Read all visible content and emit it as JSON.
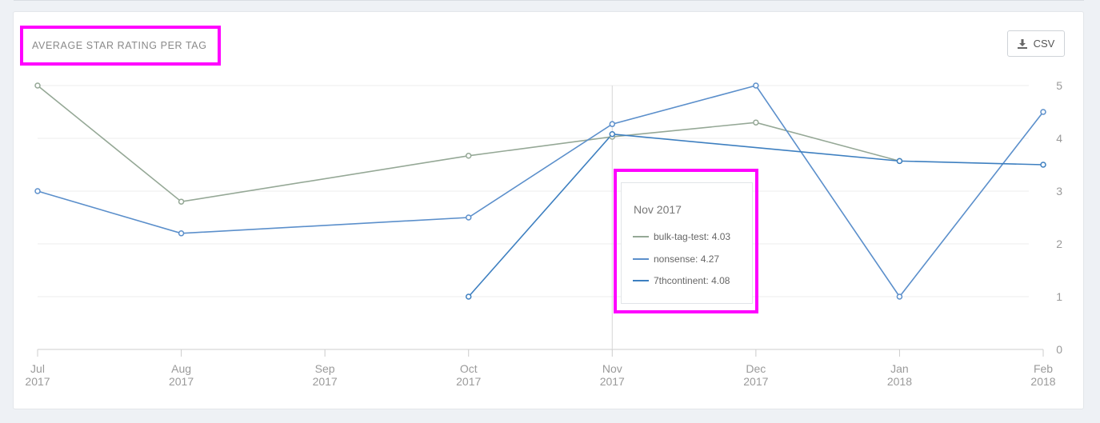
{
  "panel": {
    "title": "AVERAGE STAR RATING PER TAG",
    "csv_button": {
      "label": "CSV",
      "icon": "download-icon"
    }
  },
  "colors": {
    "bulk-tag-test": "#95a896",
    "nonsense": "#5b8fcb",
    "7thcontinent": "#3d7fc0",
    "grid": "#ececec",
    "axis": "#cccccc",
    "tick_text": "#9a9a9a",
    "highlight": "#ff00ff"
  },
  "chart_data": {
    "type": "line",
    "title": "AVERAGE STAR RATING PER TAG",
    "x": [
      {
        "month": "Jul",
        "year": "2017"
      },
      {
        "month": "Aug",
        "year": "2017"
      },
      {
        "month": "Sep",
        "year": "2017"
      },
      {
        "month": "Oct",
        "year": "2017"
      },
      {
        "month": "Nov",
        "year": "2017"
      },
      {
        "month": "Dec",
        "year": "2017"
      },
      {
        "month": "Jan",
        "year": "2018"
      },
      {
        "month": "Feb",
        "year": "2018"
      }
    ],
    "ylim": [
      0,
      5
    ],
    "yticks": [
      "0",
      "1",
      "2",
      "3",
      "4",
      "5"
    ],
    "y_axis_side": "right",
    "grid": true,
    "series": [
      {
        "name": "bulk-tag-test",
        "values": [
          5,
          2.8,
          null,
          3.67,
          4.03,
          4.3,
          3.57,
          null
        ]
      },
      {
        "name": "nonsense",
        "values": [
          3,
          2.2,
          null,
          2.5,
          4.27,
          5,
          1,
          4.5
        ]
      },
      {
        "name": "7thcontinent",
        "values": [
          null,
          null,
          null,
          1,
          4.08,
          null,
          3.57,
          3.5
        ]
      }
    ],
    "crosshair_at": "Nov 2017",
    "tooltip": {
      "title": "Nov 2017",
      "rows": [
        {
          "name": "bulk-tag-test",
          "value": "4.03"
        },
        {
          "name": "nonsense",
          "value": "4.27"
        },
        {
          "name": "7thcontinent",
          "value": "4.08"
        }
      ]
    }
  }
}
